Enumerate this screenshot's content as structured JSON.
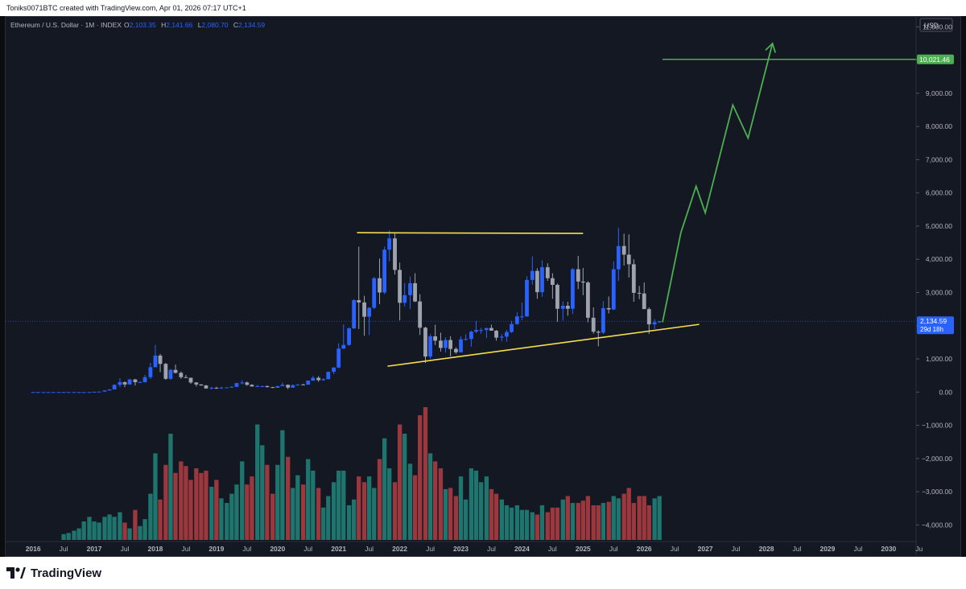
{
  "header": {
    "credit": "Toniks0071BTC created with TradingView.com, Apr 01, 2026 07:17 UTC+1"
  },
  "legend": {
    "symbol": "Ethereum / U.S. Dollar · 1M · INDEX",
    "o_label": "O",
    "o_value": "2,103.35",
    "h_label": "H",
    "h_value": "2,141.66",
    "l_label": "L",
    "l_value": "2,080.70",
    "c_label": "C",
    "c_value": "2,134.59"
  },
  "currency": "USD",
  "price_badge": {
    "value": "2,134.59",
    "countdown": "29d 18h"
  },
  "target_badge": "10,021.46",
  "brand": "TradingView",
  "colors": {
    "up": "#2962ff",
    "down": "#9ea3ad",
    "vol_up": "#1f7a73",
    "vol_down": "#a33a3f",
    "trendline": "#f5df4d",
    "projection": "#4caf50"
  },
  "chart_data": {
    "type": "candlestick",
    "interval": "1M",
    "y_ticks": [
      "11,000.00",
      "10,000.00",
      "9,000.00",
      "8,000.00",
      "7,000.00",
      "6,000.00",
      "5,000.00",
      "4,000.00",
      "3,000.00",
      "2,000.00",
      "1,000.00",
      "0.00",
      "−1,000.00",
      "−2,000.00",
      "−3,000.00",
      "−4,000.00"
    ],
    "x_ticks": [
      "2016",
      "Jul",
      "2017",
      "Jul",
      "2018",
      "Jul",
      "2019",
      "Jul",
      "2020",
      "Jul",
      "2021",
      "Jul",
      "2022",
      "Jul",
      "2023",
      "Jul",
      "2024",
      "Jul",
      "2025",
      "Jul",
      "2026",
      "Jul",
      "2027",
      "Jul",
      "2028",
      "Jul",
      "2029",
      "Jul",
      "2030",
      "Ju"
    ],
    "ylim": [
      -4500,
      11300
    ],
    "xlim": [
      2015.55,
      2030.45
    ],
    "ohlc": [
      [
        2016.0,
        1,
        1,
        1,
        1
      ],
      [
        2016.08,
        1,
        1,
        1,
        1
      ],
      [
        2016.17,
        1,
        1,
        1,
        1
      ],
      [
        2016.25,
        1,
        1,
        1,
        1
      ],
      [
        2016.33,
        1,
        1,
        1,
        1
      ],
      [
        2016.42,
        1,
        1,
        1,
        1
      ],
      [
        2016.5,
        1,
        1,
        1,
        1
      ],
      [
        2016.58,
        1,
        1,
        1,
        1
      ],
      [
        2016.67,
        1,
        1,
        1,
        1
      ],
      [
        2016.75,
        1,
        1,
        1,
        1
      ],
      [
        2016.83,
        1,
        1,
        1,
        1
      ],
      [
        2016.92,
        1,
        1,
        1,
        1
      ],
      [
        2017.0,
        8,
        11,
        8,
        10
      ],
      [
        2017.08,
        10,
        16,
        10,
        15
      ],
      [
        2017.17,
        15,
        50,
        15,
        50
      ],
      [
        2017.25,
        50,
        90,
        45,
        80
      ],
      [
        2017.33,
        80,
        230,
        80,
        220
      ],
      [
        2017.42,
        220,
        420,
        150,
        300
      ],
      [
        2017.5,
        300,
        320,
        150,
        230
      ],
      [
        2017.58,
        230,
        400,
        220,
        380
      ],
      [
        2017.67,
        380,
        400,
        200,
        300
      ],
      [
        2017.75,
        300,
        330,
        280,
        300
      ],
      [
        2017.83,
        300,
        520,
        290,
        450
      ],
      [
        2017.92,
        450,
        880,
        400,
        750
      ],
      [
        2018.0,
        750,
        1420,
        750,
        1100
      ],
      [
        2018.08,
        1100,
        1150,
        600,
        850
      ],
      [
        2018.17,
        850,
        880,
        370,
        400
      ],
      [
        2018.25,
        400,
        700,
        370,
        670
      ],
      [
        2018.33,
        670,
        830,
        560,
        580
      ],
      [
        2018.42,
        580,
        620,
        400,
        450
      ],
      [
        2018.5,
        450,
        520,
        420,
        430
      ],
      [
        2018.58,
        430,
        440,
        250,
        290
      ],
      [
        2018.67,
        290,
        300,
        170,
        230
      ],
      [
        2018.75,
        230,
        240,
        190,
        200
      ],
      [
        2018.83,
        200,
        220,
        100,
        110
      ],
      [
        2018.92,
        110,
        160,
        80,
        130
      ],
      [
        2019.0,
        130,
        160,
        100,
        110
      ],
      [
        2019.08,
        110,
        160,
        100,
        135
      ],
      [
        2019.17,
        135,
        145,
        120,
        140
      ],
      [
        2019.25,
        140,
        180,
        130,
        160
      ],
      [
        2019.33,
        160,
        280,
        150,
        270
      ],
      [
        2019.42,
        270,
        360,
        230,
        290
      ],
      [
        2019.5,
        290,
        320,
        190,
        220
      ],
      [
        2019.58,
        220,
        240,
        160,
        170
      ],
      [
        2019.67,
        170,
        220,
        160,
        180
      ],
      [
        2019.75,
        180,
        200,
        150,
        180
      ],
      [
        2019.83,
        180,
        200,
        140,
        150
      ],
      [
        2019.92,
        150,
        160,
        120,
        130
      ],
      [
        2020.0,
        130,
        190,
        130,
        180
      ],
      [
        2020.08,
        180,
        290,
        180,
        220
      ],
      [
        2020.17,
        220,
        230,
        90,
        135
      ],
      [
        2020.25,
        135,
        230,
        130,
        210
      ],
      [
        2020.33,
        210,
        240,
        190,
        230
      ],
      [
        2020.42,
        230,
        250,
        220,
        225
      ],
      [
        2020.5,
        225,
        350,
        220,
        345
      ],
      [
        2020.58,
        345,
        490,
        340,
        430
      ],
      [
        2020.67,
        430,
        480,
        310,
        360
      ],
      [
        2020.75,
        360,
        420,
        340,
        390
      ],
      [
        2020.83,
        390,
        620,
        380,
        610
      ],
      [
        2020.92,
        610,
        750,
        540,
        740
      ],
      [
        2021.0,
        740,
        1470,
        720,
        1310
      ],
      [
        2021.08,
        1310,
        2040,
        1300,
        1420
      ],
      [
        2021.17,
        1420,
        1950,
        1400,
        1920
      ],
      [
        2021.25,
        1920,
        2800,
        1900,
        2770
      ],
      [
        2021.33,
        2770,
        4380,
        1900,
        2700
      ],
      [
        2021.42,
        2700,
        2900,
        1700,
        2270
      ],
      [
        2021.5,
        2270,
        2560,
        1720,
        2540
      ],
      [
        2021.58,
        2540,
        3470,
        2500,
        3430
      ],
      [
        2021.67,
        3430,
        4020,
        2650,
        3000
      ],
      [
        2021.75,
        3000,
        4380,
        2950,
        4290
      ],
      [
        2021.83,
        4290,
        4870,
        3940,
        4630
      ],
      [
        2021.92,
        4630,
        4780,
        3540,
        3680
      ],
      [
        2022.0,
        3680,
        3900,
        2160,
        2690
      ],
      [
        2022.08,
        2690,
        3290,
        2580,
        2920
      ],
      [
        2022.17,
        2920,
        3480,
        2500,
        3280
      ],
      [
        2022.25,
        3280,
        3580,
        2710,
        2730
      ],
      [
        2022.33,
        2730,
        2950,
        1720,
        1940
      ],
      [
        2022.42,
        1940,
        1970,
        880,
        1070
      ],
      [
        2022.5,
        1070,
        1750,
        1000,
        1680
      ],
      [
        2022.58,
        1680,
        2030,
        1420,
        1550
      ],
      [
        2022.67,
        1550,
        1790,
        1220,
        1330
      ],
      [
        2022.75,
        1330,
        1650,
        1190,
        1570
      ],
      [
        2022.83,
        1570,
        1680,
        1080,
        1300
      ],
      [
        2022.92,
        1300,
        1350,
        1150,
        1200
      ],
      [
        2023.0,
        1200,
        1680,
        1190,
        1590
      ],
      [
        2023.08,
        1590,
        1740,
        1550,
        1600
      ],
      [
        2023.17,
        1600,
        1850,
        1370,
        1820
      ],
      [
        2023.25,
        1820,
        2140,
        1780,
        1870
      ],
      [
        2023.33,
        1870,
        1930,
        1760,
        1870
      ],
      [
        2023.42,
        1870,
        1930,
        1630,
        1930
      ],
      [
        2023.5,
        1930,
        2030,
        1850,
        1850
      ],
      [
        2023.58,
        1850,
        1870,
        1550,
        1640
      ],
      [
        2023.67,
        1640,
        1750,
        1530,
        1670
      ],
      [
        2023.75,
        1670,
        1870,
        1520,
        1810
      ],
      [
        2023.83,
        1810,
        2140,
        1780,
        2050
      ],
      [
        2023.92,
        2050,
        2410,
        2030,
        2280
      ],
      [
        2024.0,
        2280,
        2700,
        2170,
        2280
      ],
      [
        2024.08,
        2280,
        3490,
        2270,
        3380
      ],
      [
        2024.17,
        3380,
        4090,
        3240,
        3650
      ],
      [
        2024.25,
        3650,
        3730,
        2810,
        3010
      ],
      [
        2024.33,
        3010,
        3970,
        2870,
        3760
      ],
      [
        2024.42,
        3760,
        3880,
        3350,
        3430
      ],
      [
        2024.5,
        3430,
        3580,
        2810,
        3230
      ],
      [
        2024.58,
        3230,
        3270,
        2120,
        2510
      ],
      [
        2024.67,
        2510,
        2730,
        2150,
        2600
      ],
      [
        2024.75,
        2600,
        2720,
        2300,
        2510
      ],
      [
        2024.83,
        2510,
        3740,
        2350,
        3700
      ],
      [
        2024.92,
        3700,
        4100,
        3100,
        3330
      ],
      [
        2025.0,
        3330,
        3740,
        2920,
        3300
      ],
      [
        2025.08,
        3300,
        3340,
        2100,
        2240
      ],
      [
        2025.17,
        2240,
        2550,
        1760,
        1820
      ],
      [
        2025.25,
        1820,
        1860,
        1380,
        1790
      ],
      [
        2025.33,
        1790,
        2740,
        1750,
        2530
      ],
      [
        2025.42,
        2530,
        2880,
        2370,
        2490
      ],
      [
        2025.5,
        2490,
        3940,
        2470,
        3700
      ],
      [
        2025.58,
        3700,
        4950,
        3350,
        4400
      ],
      [
        2025.67,
        4400,
        4770,
        3810,
        4140
      ],
      [
        2025.75,
        4140,
        4750,
        3450,
        3850
      ],
      [
        2025.83,
        3850,
        4000,
        2720,
        2990
      ],
      [
        2025.92,
        2990,
        3200,
        2800,
        2970
      ],
      [
        2026.0,
        2970,
        3300,
        2600,
        2500
      ],
      [
        2026.08,
        2500,
        2550,
        1750,
        2040
      ],
      [
        2026.17,
        2040,
        2200,
        1900,
        2103
      ],
      [
        2026.25,
        2103.35,
        2141.66,
        2080.7,
        2134.59
      ]
    ],
    "volume_bars": [
      [
        2016.5,
        5
      ],
      [
        2016.58,
        6
      ],
      [
        2016.67,
        8
      ],
      [
        2016.75,
        10
      ],
      [
        2016.83,
        16
      ],
      [
        2016.92,
        20
      ],
      [
        2017.0,
        16
      ],
      [
        2017.08,
        15
      ],
      [
        2017.17,
        20
      ],
      [
        2017.25,
        22
      ],
      [
        2017.33,
        20
      ],
      [
        2017.42,
        24
      ],
      [
        2017.5,
        15
      ],
      [
        2017.58,
        10
      ],
      [
        2017.67,
        26
      ],
      [
        2017.75,
        12
      ],
      [
        2017.83,
        18
      ],
      [
        2017.92,
        40
      ],
      [
        2018.0,
        75
      ],
      [
        2018.08,
        35
      ],
      [
        2018.17,
        65
      ],
      [
        2018.25,
        92
      ],
      [
        2018.33,
        58
      ],
      [
        2018.42,
        68
      ],
      [
        2018.5,
        64
      ],
      [
        2018.58,
        52
      ],
      [
        2018.67,
        62
      ],
      [
        2018.75,
        58
      ],
      [
        2018.83,
        60
      ],
      [
        2018.92,
        46
      ],
      [
        2019.0,
        52
      ],
      [
        2019.08,
        36
      ],
      [
        2019.17,
        32
      ],
      [
        2019.25,
        40
      ],
      [
        2019.33,
        48
      ],
      [
        2019.42,
        68
      ],
      [
        2019.5,
        48
      ],
      [
        2019.58,
        55
      ],
      [
        2019.67,
        100
      ],
      [
        2019.75,
        82
      ],
      [
        2019.83,
        65
      ],
      [
        2019.92,
        40
      ],
      [
        2020.0,
        65
      ],
      [
        2020.08,
        95
      ],
      [
        2020.17,
        72
      ],
      [
        2020.25,
        45
      ],
      [
        2020.33,
        56
      ],
      [
        2020.42,
        48
      ],
      [
        2020.5,
        70
      ],
      [
        2020.58,
        60
      ],
      [
        2020.67,
        45
      ],
      [
        2020.75,
        28
      ],
      [
        2020.83,
        38
      ],
      [
        2020.92,
        50
      ],
      [
        2021.0,
        60
      ],
      [
        2021.08,
        60
      ],
      [
        2021.17,
        30
      ],
      [
        2021.25,
        35
      ],
      [
        2021.33,
        55
      ],
      [
        2021.42,
        50
      ],
      [
        2021.5,
        55
      ],
      [
        2021.58,
        45
      ],
      [
        2021.67,
        70
      ],
      [
        2021.75,
        88
      ],
      [
        2021.83,
        62
      ],
      [
        2021.92,
        50
      ],
      [
        2022.0,
        100
      ],
      [
        2022.08,
        92
      ],
      [
        2022.17,
        66
      ],
      [
        2022.25,
        56
      ],
      [
        2022.33,
        108
      ],
      [
        2022.42,
        115
      ],
      [
        2022.5,
        75
      ],
      [
        2022.58,
        68
      ],
      [
        2022.67,
        62
      ],
      [
        2022.75,
        44
      ],
      [
        2022.83,
        45
      ],
      [
        2022.92,
        38
      ],
      [
        2023.0,
        55
      ],
      [
        2023.08,
        35
      ],
      [
        2023.17,
        62
      ],
      [
        2023.25,
        60
      ],
      [
        2023.33,
        50
      ],
      [
        2023.42,
        55
      ],
      [
        2023.5,
        44
      ],
      [
        2023.58,
        40
      ],
      [
        2023.67,
        35
      ],
      [
        2023.75,
        30
      ],
      [
        2023.83,
        28
      ],
      [
        2023.92,
        30
      ],
      [
        2024.0,
        26
      ],
      [
        2024.08,
        26
      ],
      [
        2024.17,
        24
      ],
      [
        2024.25,
        22
      ],
      [
        2024.33,
        30
      ],
      [
        2024.42,
        24
      ],
      [
        2024.5,
        28
      ],
      [
        2024.58,
        28
      ],
      [
        2024.67,
        35
      ],
      [
        2024.75,
        38
      ],
      [
        2024.83,
        32
      ],
      [
        2024.92,
        32
      ],
      [
        2025.0,
        34
      ],
      [
        2025.08,
        38
      ],
      [
        2025.17,
        30
      ],
      [
        2025.25,
        30
      ],
      [
        2025.33,
        32
      ],
      [
        2025.42,
        33
      ],
      [
        2025.5,
        38
      ],
      [
        2025.58,
        36
      ],
      [
        2025.67,
        40
      ],
      [
        2025.75,
        45
      ],
      [
        2025.83,
        32
      ],
      [
        2025.92,
        38
      ],
      [
        2026.0,
        38
      ],
      [
        2026.08,
        30
      ],
      [
        2026.17,
        36
      ],
      [
        2026.25,
        38
      ]
    ],
    "annotations": {
      "resistance_line": [
        [
          2021.3,
          4800
        ],
        [
          2025.0,
          4780
        ]
      ],
      "support_line": [
        [
          2021.8,
          780
        ],
        [
          2026.9,
          2040
        ]
      ],
      "target_line": [
        [
          2026.3,
          10021.46
        ],
        [
          2030.5,
          10021.46
        ]
      ],
      "projection_path": [
        [
          2026.3,
          2100
        ],
        [
          2026.6,
          4800
        ],
        [
          2026.85,
          6200
        ],
        [
          2027.0,
          5400
        ],
        [
          2027.45,
          8650
        ],
        [
          2027.7,
          7650
        ],
        [
          2028.1,
          10500
        ]
      ]
    }
  }
}
